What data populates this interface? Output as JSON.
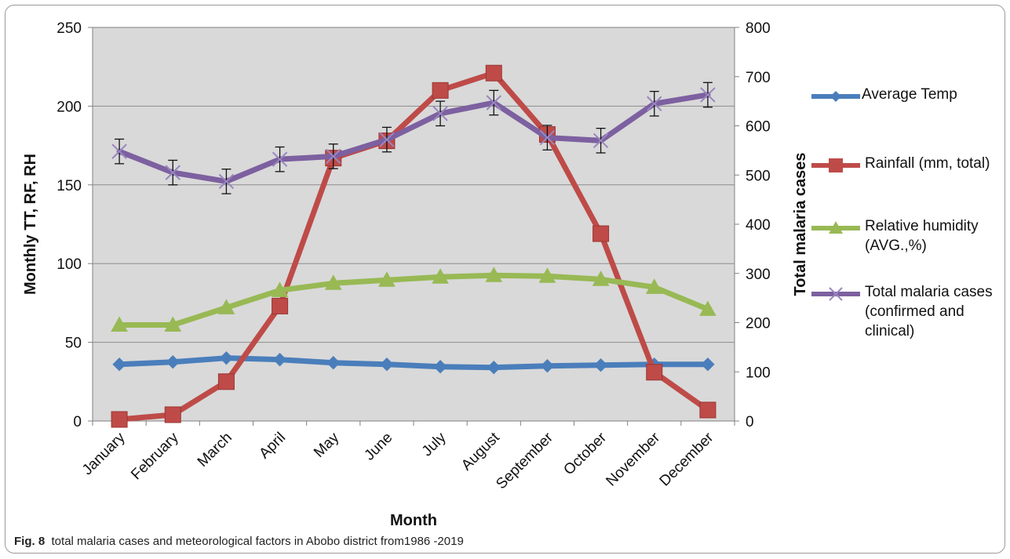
{
  "caption": {
    "label": "Fig. 8",
    "text": "total malaria cases and meteorological factors in Abobo district from1986 -2019"
  },
  "colors": {
    "plot_bg": "#d9d9d9",
    "grid": "#8c8c8c",
    "temp": "#4a7ebb",
    "rain": "#be4b48",
    "humidity": "#98b954",
    "malaria": "#7d60a0"
  },
  "chart_data": {
    "type": "line",
    "categories": [
      "January",
      "February",
      "March",
      "April",
      "May",
      "June",
      "July",
      "August",
      "September",
      "October",
      "November",
      "December"
    ],
    "xlabel": "Month",
    "ylabel": "Monthly TT, RF, RH",
    "y2label": "Total malaria cases",
    "ylim": [
      0,
      250
    ],
    "y2lim": [
      0,
      800
    ],
    "yticks": [
      "0",
      "50",
      "100",
      "150",
      "200",
      "250"
    ],
    "y2ticks": [
      "0",
      "100",
      "200",
      "300",
      "400",
      "500",
      "600",
      "700",
      "800"
    ],
    "grid": true,
    "legend_position": "right",
    "series": [
      {
        "name": "Average Temp",
        "axis": "left",
        "marker": "diamond",
        "values": [
          36,
          37.5,
          40,
          39,
          37,
          36,
          34.5,
          34,
          35,
          35.5,
          36,
          36
        ]
      },
      {
        "name": "Rainfall (mm, total)",
        "axis": "left",
        "marker": "square",
        "values": [
          1,
          4,
          25,
          73,
          167,
          178,
          210,
          221,
          182,
          119,
          31,
          7
        ]
      },
      {
        "name": "Relative humidity (AVG.,%)",
        "axis": "left",
        "marker": "triangle",
        "values": [
          61,
          61,
          72,
          83,
          87.5,
          89.5,
          91.5,
          92.5,
          92,
          90,
          85,
          71
        ]
      },
      {
        "name": "Total malaria cases (confirmed and clinical)",
        "axis": "right",
        "marker": "x",
        "values": [
          548,
          505,
          487,
          532,
          538,
          572,
          625,
          647,
          576,
          570,
          645,
          663
        ],
        "error": 25
      }
    ]
  }
}
